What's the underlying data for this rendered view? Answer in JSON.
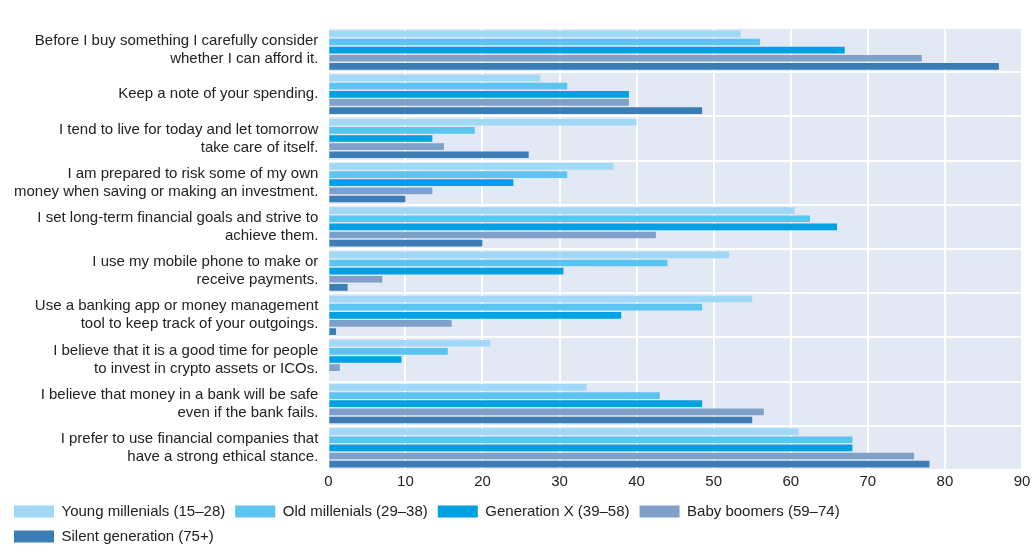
{
  "chart_data": {
    "type": "bar",
    "orientation": "horizontal",
    "categories": [
      "Before I buy something I carefully consider\nwhether I can afford it.",
      "Keep a note of your spending.",
      "I tend to live for today and let tomorrow\ntake care of itself.",
      "I am prepared to risk some of my own\nmoney when saving or making an investment.",
      "I set long-term financial goals and strive to\nachieve them.",
      "I use my mobile phone to make or\nreceive payments.",
      "Use a banking app or money management\ntool to keep track of your outgoings.",
      "I believe that it is a good time for people\nto invest in crypto assets or ICOs.",
      "I believe that money in a bank will be safe\neven if the bank fails.",
      "I prefer to use financial companies that\nhave a strong ethical stance."
    ],
    "series": [
      {
        "name": "Young millenials (15–28)",
        "color": "#a0d8f5",
        "values": [
          53.5,
          27.5,
          40,
          37,
          60.5,
          52,
          55,
          21,
          33.5,
          61
        ]
      },
      {
        "name": "Old millenials (29–38)",
        "color": "#5bc4f0",
        "values": [
          56,
          31,
          19,
          31,
          62.5,
          44,
          48.5,
          15.5,
          43,
          68
        ]
      },
      {
        "name": "Generation X (39–58)",
        "color": "#00a1e2",
        "values": [
          67,
          39,
          13.5,
          24,
          66,
          30.5,
          38,
          9.5,
          48.5,
          68
        ]
      },
      {
        "name": "Baby boomers (59–74)",
        "color": "#7fa1c9",
        "values": [
          77,
          39,
          15,
          13.5,
          42.5,
          7,
          16,
          1.5,
          56.5,
          76
        ]
      },
      {
        "name": "Silent generation (75+)",
        "color": "#3d7db5",
        "values": [
          87,
          48.5,
          26,
          10,
          20,
          2.5,
          1,
          null,
          55,
          78
        ]
      }
    ],
    "xlim": [
      0,
      90
    ],
    "xticks": [
      0,
      10,
      20,
      30,
      40,
      50,
      60,
      70,
      80,
      90
    ],
    "grid": true,
    "legend": "bottom"
  }
}
